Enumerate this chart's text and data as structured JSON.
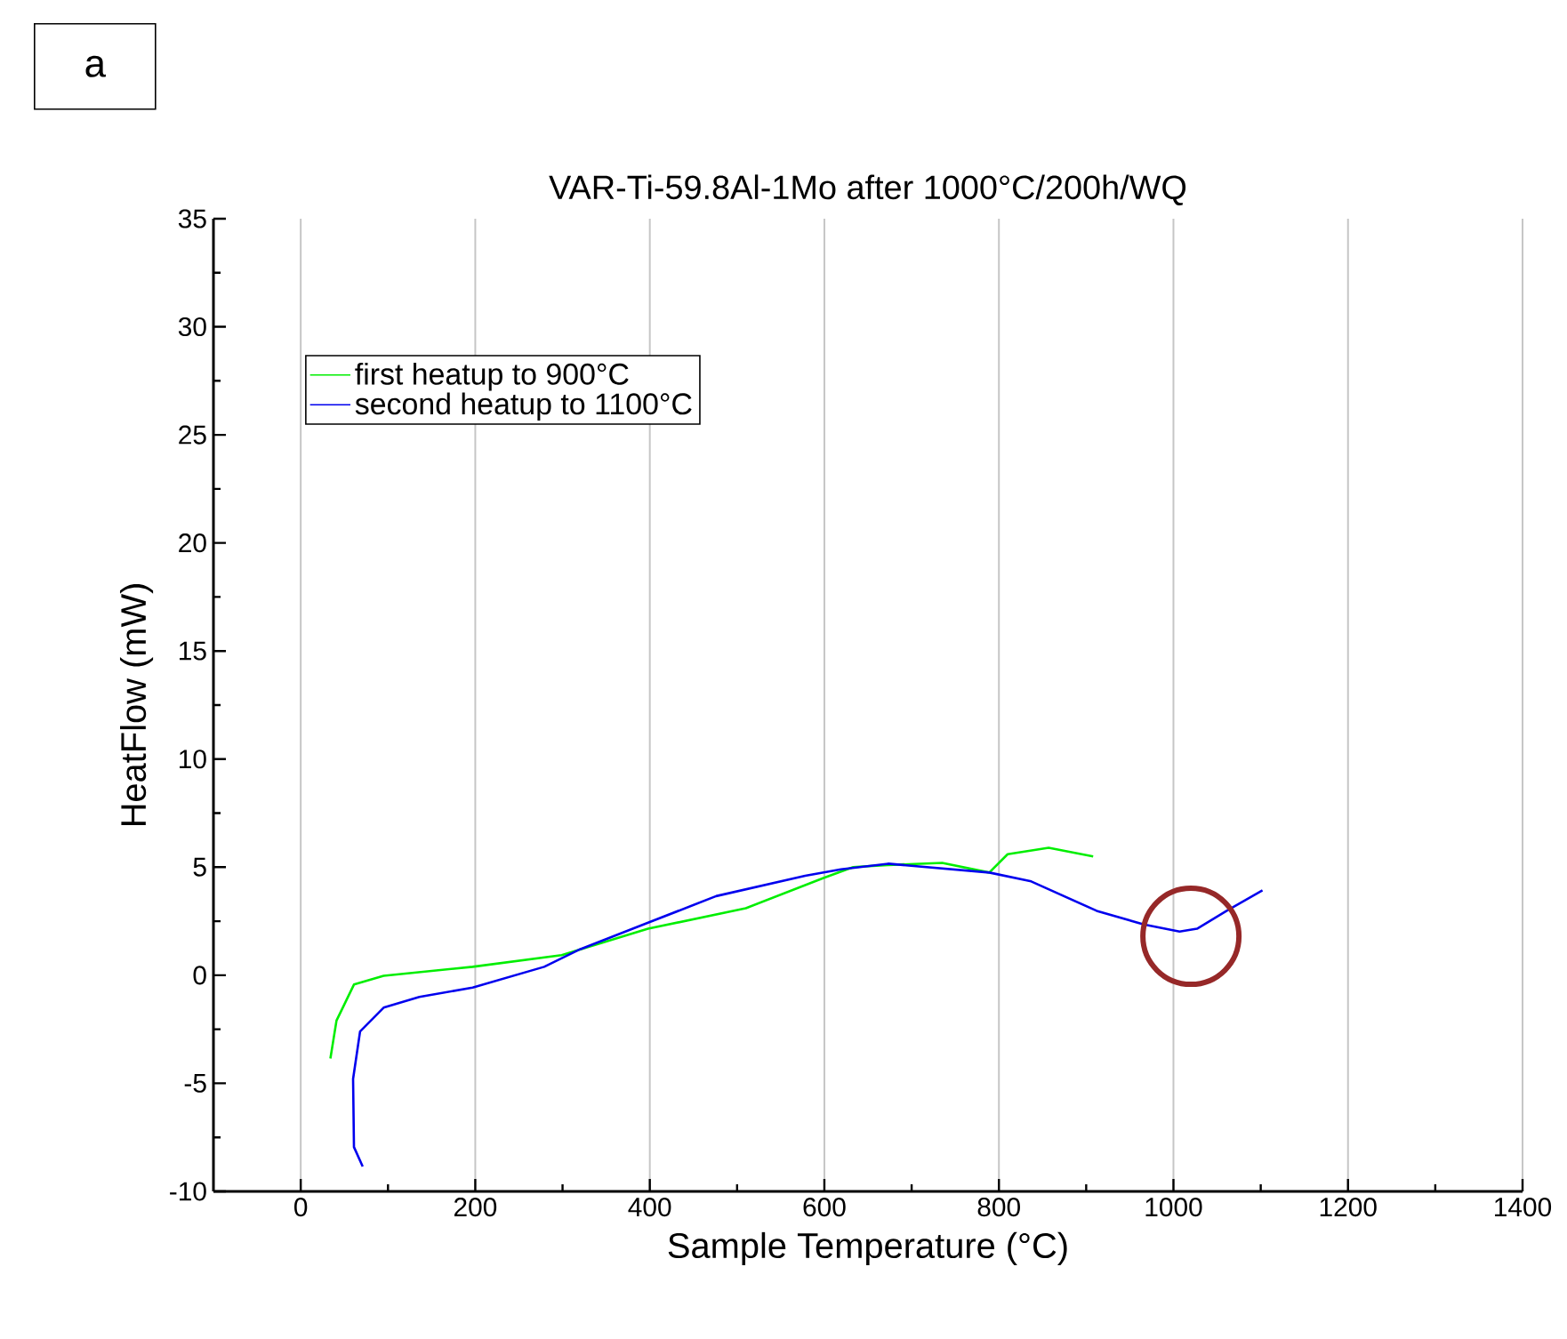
{
  "chart_data": {
    "type": "line",
    "title": "VAR-Ti-59.8Al-1Mo after 1000°C/200h/WQ",
    "xlabel": "Sample Temperature (°C)",
    "ylabel": "HeatFlow (mW)",
    "xlim": [
      -100,
      1400
    ],
    "xticks": [
      0,
      200,
      400,
      600,
      800,
      1000,
      1200,
      1400
    ],
    "ylim": [
      -10,
      35
    ],
    "yticks": [
      -10,
      -5,
      0,
      5,
      10,
      15,
      20,
      25,
      30,
      35
    ],
    "grid": "x",
    "legend": "top left",
    "annotations": [
      "a"
    ],
    "series": [
      {
        "name": "first heatup to 900°C",
        "color": "#00ee00",
        "x": [
          34,
          41,
          61,
          95,
          197,
          299,
          398,
          510,
          599,
          633,
          673,
          735,
          789,
          810,
          857,
          908
        ],
        "values": [
          -3.85,
          -2.1,
          -0.43,
          -0.03,
          0.39,
          0.93,
          2.15,
          3.1,
          4.5,
          5.0,
          5.1,
          5.2,
          4.75,
          5.6,
          5.9,
          5.5
        ]
      },
      {
        "name": "second heatup to 1100°C",
        "color": "#0000ee",
        "x": [
          71,
          61,
          60,
          68,
          95,
          136,
          197,
          279,
          320,
          398,
          476,
          578,
          619,
          673,
          789,
          837,
          912,
          966,
          1007,
          1027,
          1061,
          1102
        ],
        "values": [
          -8.85,
          -7.95,
          -4.8,
          -2.6,
          -1.5,
          -1.0,
          -0.57,
          0.39,
          1.2,
          2.43,
          3.66,
          4.6,
          4.9,
          5.16,
          4.75,
          4.34,
          2.98,
          2.35,
          2.02,
          2.15,
          2.98,
          3.93
        ]
      }
    ]
  }
}
